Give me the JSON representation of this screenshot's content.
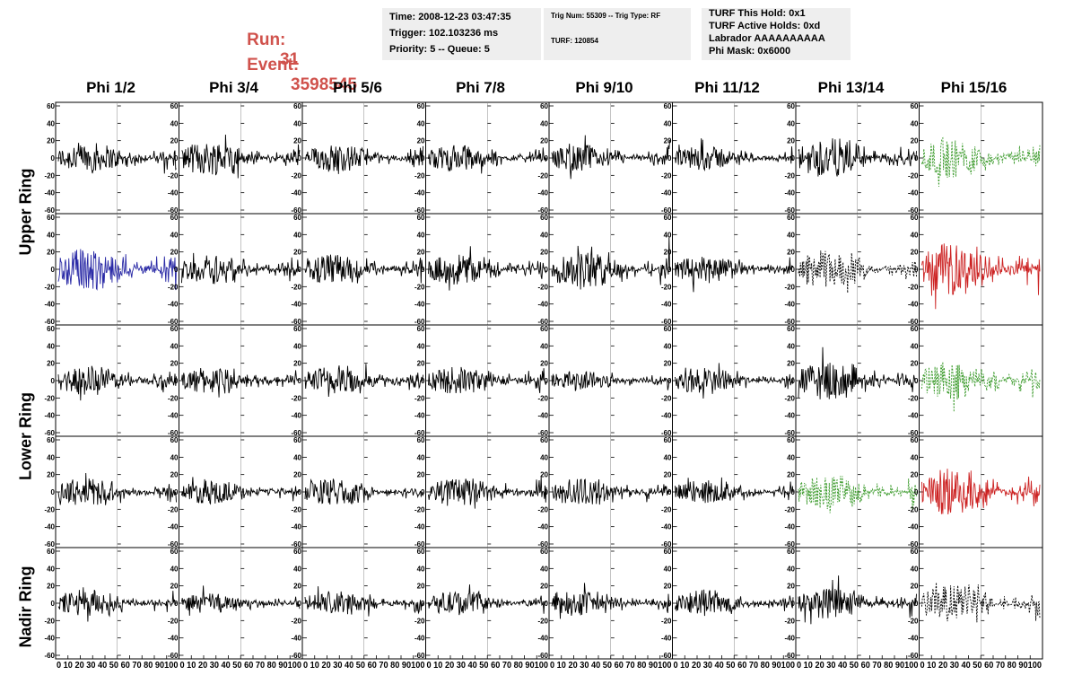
{
  "run": {
    "label": "Run:",
    "value": "31"
  },
  "event": {
    "label": "Event:",
    "value": "3598545"
  },
  "header_panels": {
    "time": {
      "line1": "Time: 2008-12-23 03:47:35",
      "line2": "Trigger: 102.103236 ms",
      "line3": "Priority: 5 -- Queue: 5"
    },
    "trig": {
      "line1": "Trig Num: 55309 -- Trig Type: RF",
      "line2": "TURF: 120854"
    },
    "turf": {
      "line1": "TURF This Hold: 0x1",
      "line2": "TURF Active Holds: 0xd",
      "line3": "Labrador AAAAAAAAAA",
      "line4": "Phi Mask: 0x6000"
    }
  },
  "columns": [
    "Phi 1/2",
    "Phi 3/4",
    "Phi 5/6",
    "Phi 7/8",
    "Phi 9/10",
    "Phi 11/12",
    "Phi 13/14",
    "Phi 15/16"
  ],
  "ring_labels": {
    "upper": "Upper Ring",
    "lower": "Lower Ring",
    "nadir": "Nadir Ring"
  },
  "colors": {
    "title_red": "#d0524c",
    "panel_bg": "#eeeeee",
    "trace_black": "#000000",
    "trace_blue": "#2a2aa6",
    "trace_green": "#3a9a2a",
    "trace_red": "#cc2222"
  },
  "chart_data": {
    "type": "line",
    "layout": "grid of 5 rows x 8 columns of waveform plots",
    "ylim": [
      -60,
      60
    ],
    "xlim": [
      0,
      100
    ],
    "y_ticks": [
      "60",
      "40",
      "20",
      "0",
      "-20",
      "-40",
      "-60"
    ],
    "x_ticks": [
      "0",
      "10",
      "20",
      "30",
      "40",
      "50",
      "60",
      "70",
      "80",
      "90",
      "100"
    ],
    "x_tick_text": "0 10 20 30 40 50 60 70 80 90100",
    "x_tick_text_last": "0 10 20 30 40 50 60 70 80 90100",
    "trace_styles": [
      [
        "black",
        "black",
        "black",
        "black",
        "black",
        "black",
        "black",
        "green-dashed"
      ],
      [
        "blue",
        "black",
        "black",
        "black",
        "black",
        "black",
        "black-dashed",
        "red"
      ],
      [
        "black",
        "black",
        "black",
        "black",
        "black",
        "black",
        "black",
        "green-dashed"
      ],
      [
        "black",
        "black",
        "black",
        "black",
        "black",
        "black",
        "green-dashed",
        "red"
      ],
      [
        "black",
        "black",
        "black",
        "black",
        "black",
        "black",
        "black",
        "black-dashed"
      ]
    ],
    "amplitudes": [
      [
        18,
        20,
        16,
        16,
        16,
        14,
        24,
        24
      ],
      [
        26,
        18,
        18,
        18,
        22,
        16,
        22,
        30
      ],
      [
        18,
        16,
        18,
        16,
        12,
        16,
        22,
        22
      ],
      [
        16,
        14,
        16,
        18,
        16,
        14,
        20,
        28
      ],
      [
        16,
        12,
        14,
        14,
        14,
        16,
        18,
        22
      ]
    ]
  }
}
